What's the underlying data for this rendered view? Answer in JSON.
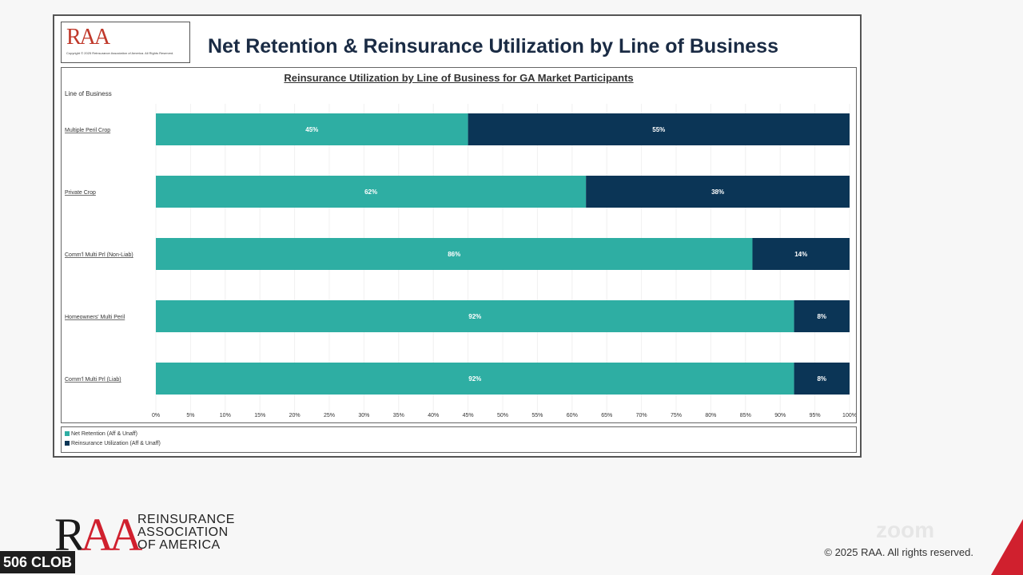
{
  "slide": {
    "title": "Net Retention & Reinsurance Utilization by Line of Business",
    "logo_small": {
      "text": "RAA",
      "copyright": "Copyright © 2025 Reinsurance Association of America. All Rights Reserved."
    }
  },
  "chart_data": {
    "type": "bar",
    "orientation": "horizontal",
    "stacked": true,
    "title": "Reinsurance Utilization by Line of Business for GA Market Participants",
    "ylabel": "Line of Business",
    "categories": [
      "Multiple Peril Crop",
      "Private Crop",
      "Comm'l Multi Prl (Non-Liab)",
      "Homeowners' Multi Peril",
      "Comm'l Multi Prl (Liab)"
    ],
    "series": [
      {
        "name": "Net Retention (Aff & Unaff)",
        "color": "#2eaea3",
        "values": [
          45,
          62,
          86,
          92,
          92
        ],
        "labels": [
          "45%",
          "62%",
          "86%",
          "92%",
          "92%"
        ]
      },
      {
        "name": "Reinsurance Utilization (Aff & Unaff)",
        "color": "#0b3556",
        "values": [
          55,
          38,
          14,
          8,
          8
        ],
        "labels": [
          "55%",
          "38%",
          "14%",
          "8%",
          "8%"
        ]
      }
    ],
    "xlim": [
      0,
      100
    ],
    "xticks": [
      "0%",
      "5%",
      "10%",
      "15%",
      "20%",
      "25%",
      "30%",
      "35%",
      "40%",
      "45%",
      "50%",
      "55%",
      "60%",
      "65%",
      "70%",
      "75%",
      "80%",
      "85%",
      "90%",
      "95%",
      "100%"
    ],
    "legend_position": "bottom"
  },
  "footer": {
    "logo_letters": "RAA",
    "org_line1": "REINSURANCE",
    "org_line2": "ASSOCIATION",
    "org_line3": "OF AMERICA",
    "copyright": "© 2025 RAA. All rights reserved."
  },
  "overlay": {
    "participant_name": "506 CLOB",
    "watermark": "zoom"
  }
}
